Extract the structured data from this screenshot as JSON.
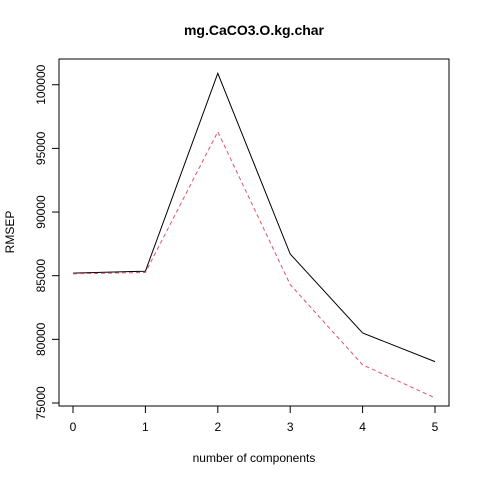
{
  "chart_data": {
    "type": "line",
    "title": "mg.CaCO3.O.kg.char",
    "xlabel": "number of components",
    "ylabel": "RMSEP",
    "x": [
      0,
      1,
      2,
      3,
      4,
      5
    ],
    "xlim": [
      0,
      5
    ],
    "ylim": [
      75000,
      101000
    ],
    "xticks": [
      "0",
      "1",
      "2",
      "3",
      "4",
      "5"
    ],
    "yticks": [
      "75000",
      "80000",
      "85000",
      "90000",
      "95000",
      "100000"
    ],
    "grid": false,
    "legend": "none",
    "series": [
      {
        "values": [
          85200,
          85350,
          100900,
          86700,
          80500,
          78250
        ],
        "color": "#000000",
        "dash": "solid"
      },
      {
        "values": [
          85150,
          85250,
          96300,
          84300,
          78000,
          75400
        ],
        "color": "#DF536B",
        "dash": "dashed"
      }
    ]
  }
}
